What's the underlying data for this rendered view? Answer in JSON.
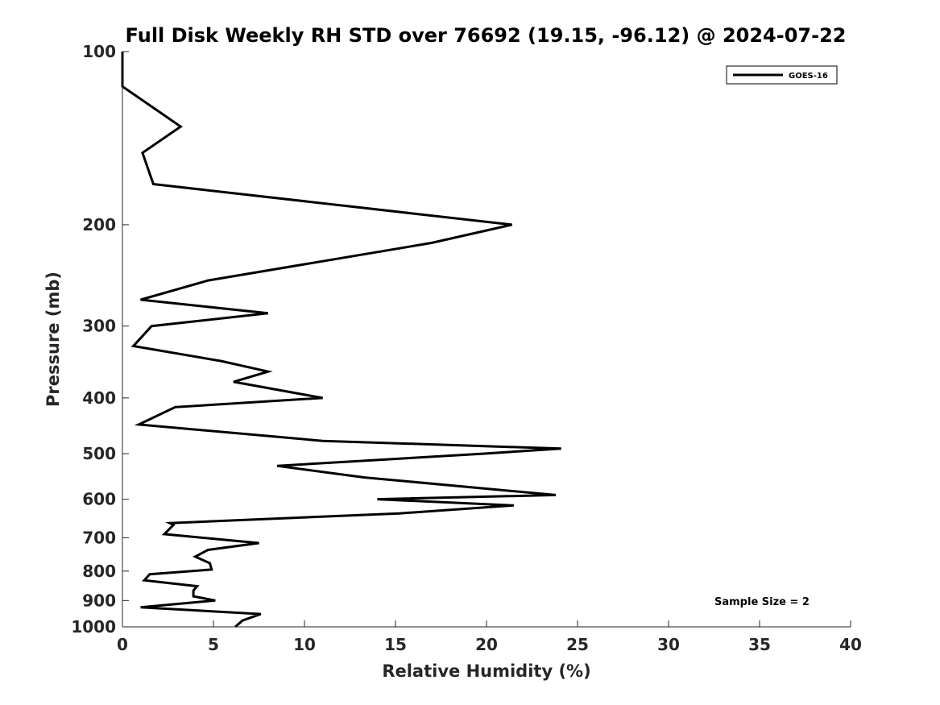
{
  "chart_data": {
    "type": "line",
    "title": "Full Disk Weekly RH STD over 76692 (19.15, -96.12) @ 2024-07-22",
    "xlabel": "Relative Humidity (%)",
    "ylabel": "Pressure (mb)",
    "xlim": [
      0,
      40
    ],
    "ylim": [
      100,
      1000
    ],
    "y_scale": "log",
    "y_reversed": true,
    "grid": false,
    "legend_position": "top-right",
    "x_ticks": [
      0,
      5,
      10,
      15,
      20,
      25,
      30,
      35,
      40
    ],
    "y_ticks": [
      100,
      200,
      300,
      400,
      500,
      600,
      700,
      800,
      900,
      1000
    ],
    "series": [
      {
        "name": "GOES-16",
        "color": "#000000",
        "points": [
          [
            0.0,
            100
          ],
          [
            0.0,
            115
          ],
          [
            3.2,
            135
          ],
          [
            1.1,
            150
          ],
          [
            1.7,
            170
          ],
          [
            21.4,
            200
          ],
          [
            17.0,
            215
          ],
          [
            4.7,
            250
          ],
          [
            1.0,
            270
          ],
          [
            8.0,
            285
          ],
          [
            1.6,
            300
          ],
          [
            0.6,
            325
          ],
          [
            5.4,
            345
          ],
          [
            8.0,
            360
          ],
          [
            6.1,
            375
          ],
          [
            11.0,
            400
          ],
          [
            2.9,
            415
          ],
          [
            0.9,
            445
          ],
          [
            11.0,
            475
          ],
          [
            24.1,
            490
          ],
          [
            19.8,
            500
          ],
          [
            8.5,
            525
          ],
          [
            13.3,
            550
          ],
          [
            23.8,
            590
          ],
          [
            14.0,
            600
          ],
          [
            21.5,
            615
          ],
          [
            15.2,
            635
          ],
          [
            2.6,
            660
          ],
          [
            2.8,
            665
          ],
          [
            2.3,
            690
          ],
          [
            7.5,
            715
          ],
          [
            4.7,
            735
          ],
          [
            4.0,
            755
          ],
          [
            4.8,
            775
          ],
          [
            4.9,
            795
          ],
          [
            1.5,
            810
          ],
          [
            1.2,
            830
          ],
          [
            4.1,
            850
          ],
          [
            3.9,
            865
          ],
          [
            3.9,
            885
          ],
          [
            5.1,
            900
          ],
          [
            1.0,
            925
          ],
          [
            7.6,
            950
          ],
          [
            6.6,
            975
          ],
          [
            6.2,
            1000
          ]
        ]
      }
    ],
    "annotations": [
      "Sample Size = 2"
    ]
  }
}
